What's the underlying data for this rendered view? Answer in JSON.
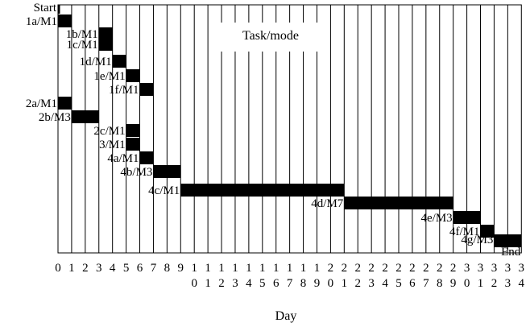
{
  "chart_data": {
    "type": "gantt",
    "title": "Task/mode",
    "xlabel": "Day",
    "xlim": [
      0,
      34
    ],
    "grid": true,
    "start_label": "Start",
    "end_label": "End",
    "x_ticks": [
      "0",
      "1",
      "2",
      "3",
      "4",
      "5",
      "6",
      "7",
      "8",
      "9",
      "10",
      "11",
      "12",
      "13",
      "14",
      "15",
      "16",
      "17",
      "18",
      "19",
      "20",
      "21",
      "22",
      "23",
      "24",
      "25",
      "26",
      "27",
      "28",
      "29",
      "30",
      "31",
      "32",
      "33",
      "34"
    ],
    "tasks": [
      {
        "label": "1a/M1",
        "start": 0,
        "end": 1
      },
      {
        "label": "1b/M1",
        "start": 3,
        "end": 4
      },
      {
        "label": "1c/M1",
        "start": 3,
        "end": 4
      },
      {
        "label": "1d/M1",
        "start": 4,
        "end": 5
      },
      {
        "label": "1e/M1",
        "start": 5,
        "end": 6
      },
      {
        "label": "1f/M1",
        "start": 6,
        "end": 7
      },
      {
        "label": "2a/M1",
        "start": 0,
        "end": 1
      },
      {
        "label": "2b/M3",
        "start": 1,
        "end": 3
      },
      {
        "label": "2c/M1",
        "start": 5,
        "end": 6
      },
      {
        "label": "3/M1",
        "start": 5,
        "end": 6
      },
      {
        "label": "4a/M1",
        "start": 6,
        "end": 7
      },
      {
        "label": "4b/M3",
        "start": 7,
        "end": 9
      },
      {
        "label": "4c/M1",
        "start": 9,
        "end": 21
      },
      {
        "label": "4d/M7",
        "start": 21,
        "end": 29
      },
      {
        "label": "4e/M3",
        "start": 29,
        "end": 31
      },
      {
        "label": "4f/M1",
        "start": 31,
        "end": 32
      },
      {
        "label": "4g/M3",
        "start": 32,
        "end": 34
      }
    ]
  }
}
